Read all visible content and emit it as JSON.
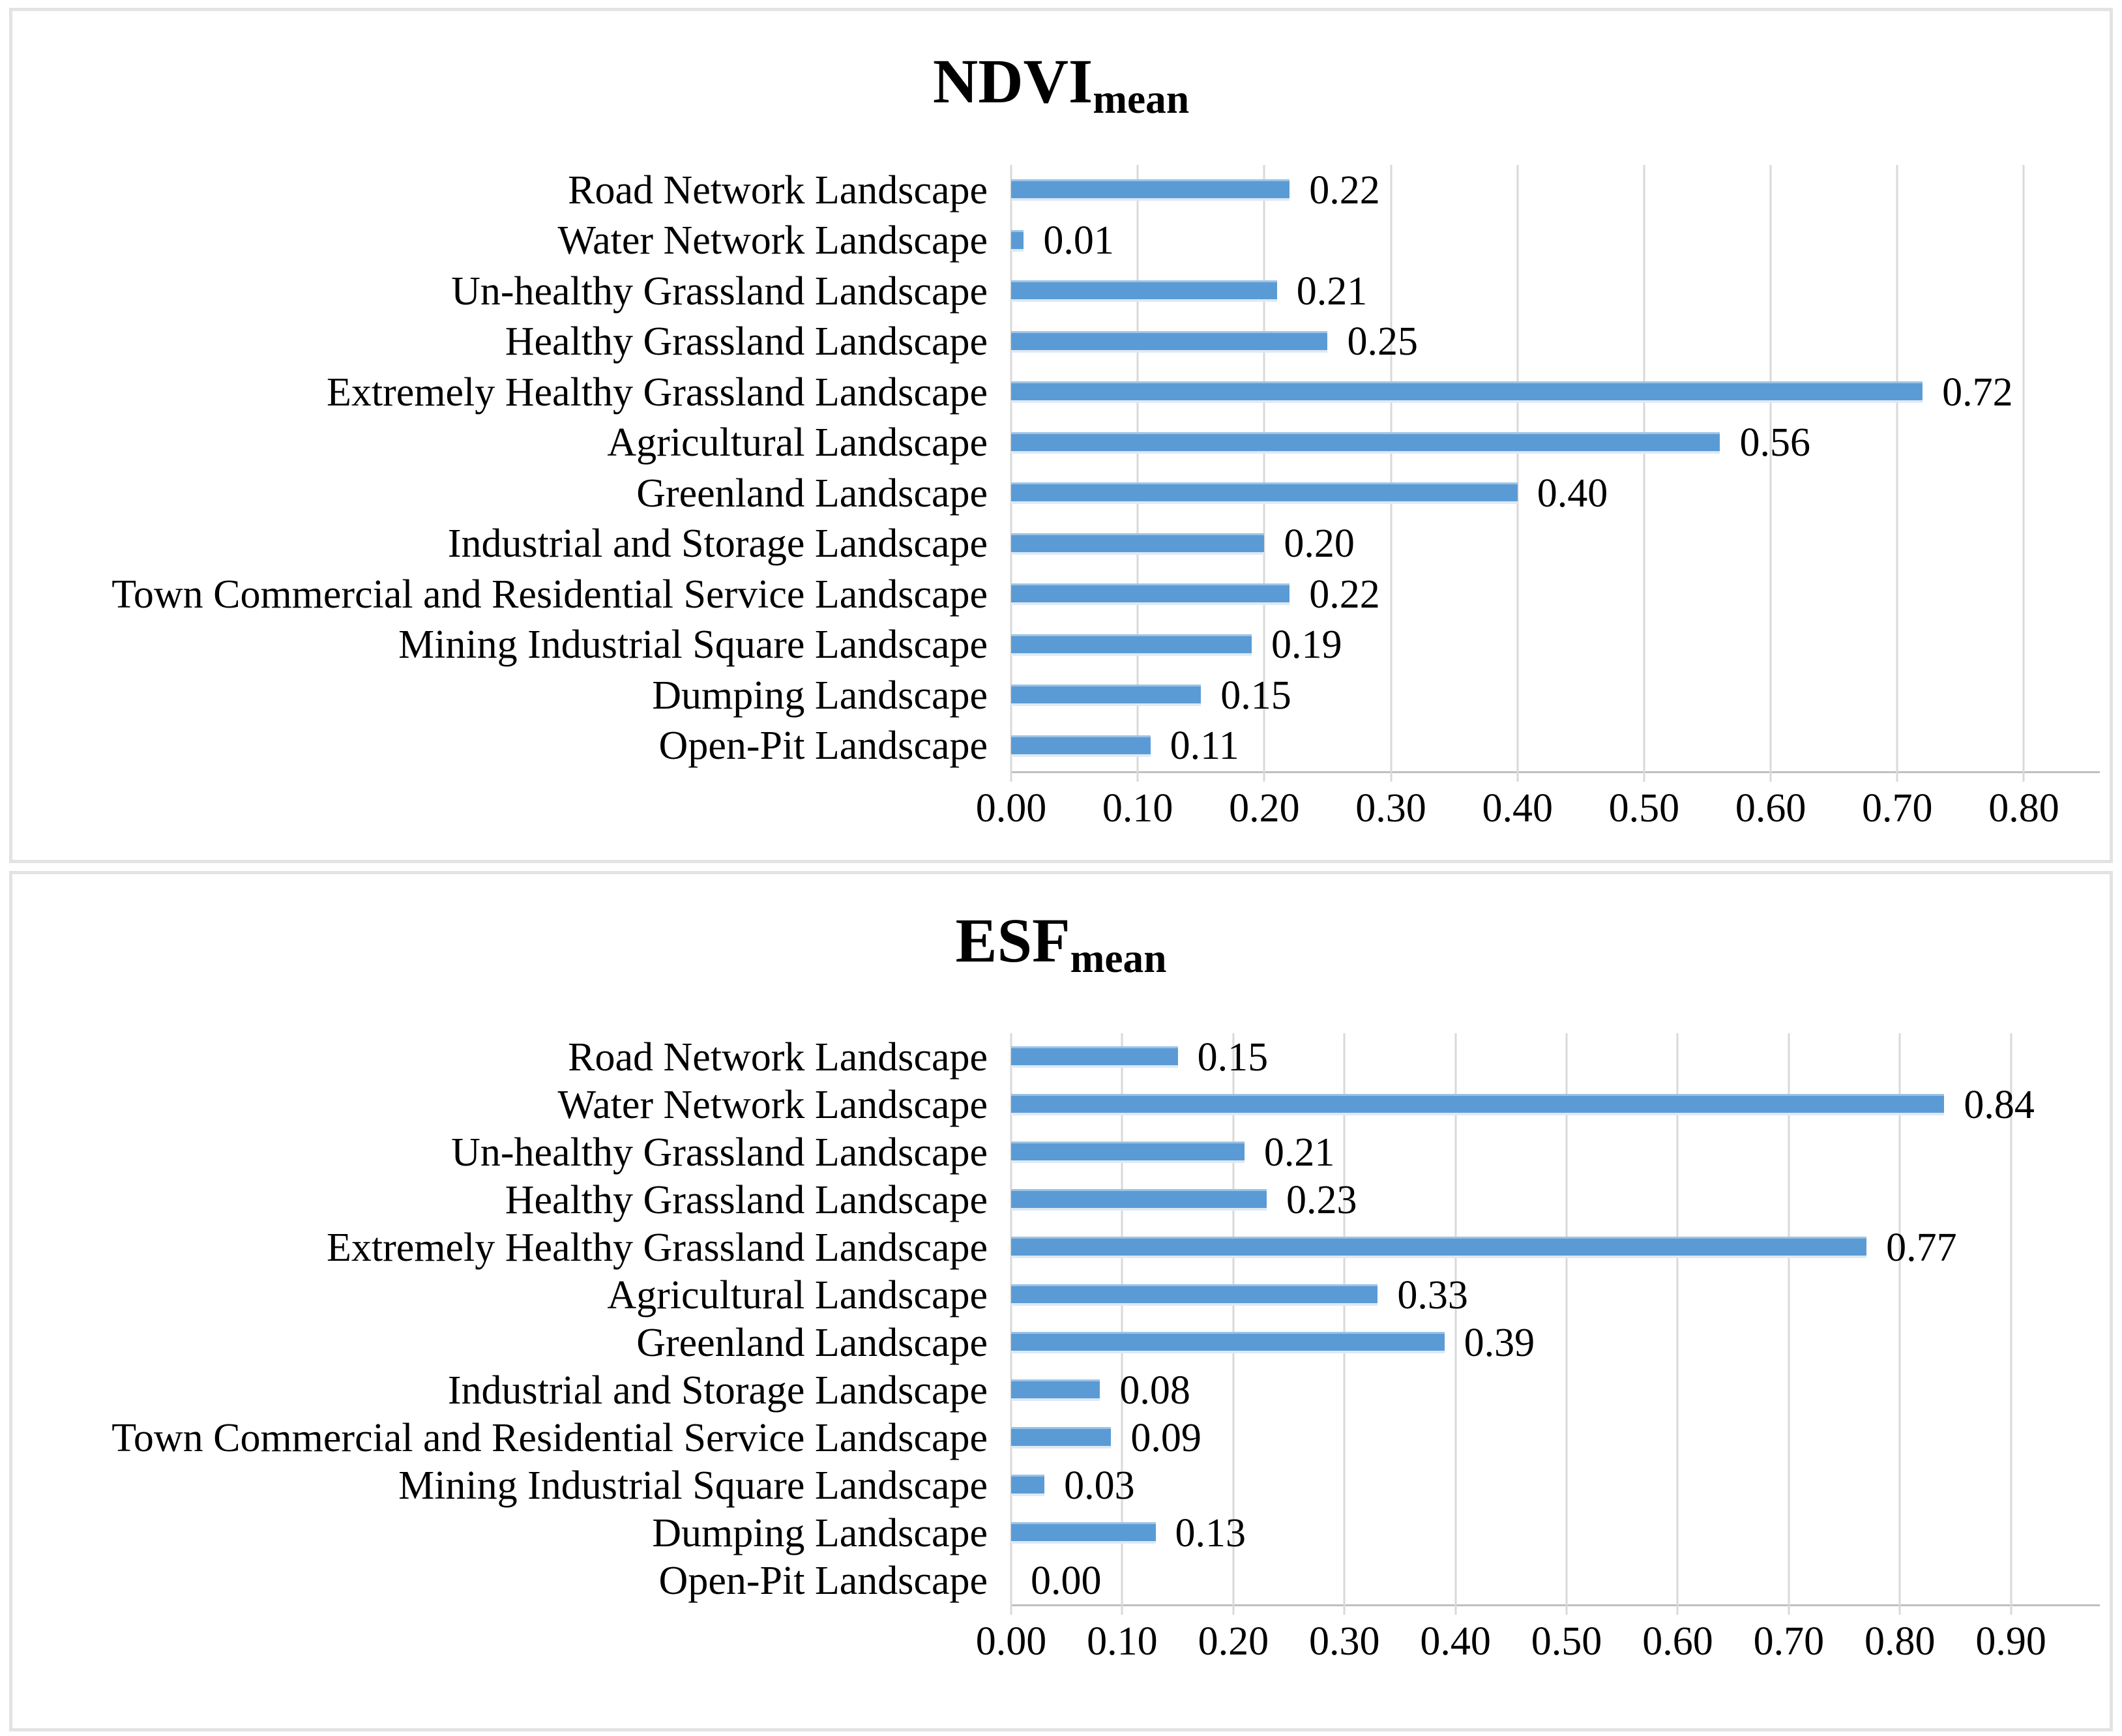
{
  "colors": {
    "bar": "#5B9BD5",
    "bar_top_edge": "#9DC3E6",
    "bar_bottom_edge": "#DEE9F6",
    "gridline": "#D9D9D9",
    "axis_line": "#BFBFBF",
    "panel_border": "#E3E3E3",
    "text": "#000000"
  },
  "chart_data": [
    {
      "type": "bar",
      "orientation": "horizontal",
      "title": "NDVI_mean",
      "title_base": "NDVI",
      "title_sub": "mean",
      "categories": [
        "Road Network Landscape",
        "Water Network Landscape",
        "Un-healthy Grassland Landscape",
        "Healthy Grassland Landscape",
        "Extremely Healthy Grassland Landscape",
        "Agricultural Landscape",
        "Greenland Landscape",
        "Industrial and Storage Landscape",
        "Town Commercial and Residential Service Landscape",
        "Mining Industrial Square Landscape",
        "Dumping Landscape",
        "Open-Pit Landscape"
      ],
      "values": [
        0.22,
        0.01,
        0.21,
        0.25,
        0.72,
        0.56,
        0.4,
        0.2,
        0.22,
        0.19,
        0.15,
        0.11
      ],
      "value_labels": [
        "0.22",
        "0.01",
        "0.21",
        "0.25",
        "0.72",
        "0.56",
        "0.40",
        "0.20",
        "0.22",
        "0.19",
        "0.15",
        "0.11"
      ],
      "xlabel": "",
      "ylabel": "",
      "ticks": [
        "0.00",
        "0.10",
        "0.20",
        "0.30",
        "0.40",
        "0.50",
        "0.60",
        "0.70",
        "0.80"
      ],
      "tick_values": [
        0.0,
        0.1,
        0.2,
        0.3,
        0.4,
        0.5,
        0.6,
        0.7,
        0.8
      ],
      "xlim": [
        0,
        0.86
      ],
      "grid": true,
      "legend": false
    },
    {
      "type": "bar",
      "orientation": "horizontal",
      "title": "ESF_mean",
      "title_base": "ESF",
      "title_sub": "mean",
      "categories": [
        "Road Network Landscape",
        "Water Network Landscape",
        "Un-healthy Grassland Landscape",
        "Healthy Grassland Landscape",
        "Extremely Healthy Grassland Landscape",
        "Agricultural Landscape",
        "Greenland Landscape",
        "Industrial and Storage Landscape",
        "Town Commercial and Residential Service Landscape",
        "Mining Industrial Square Landscape",
        "Dumping Landscape",
        "Open-Pit Landscape"
      ],
      "values": [
        0.15,
        0.84,
        0.21,
        0.23,
        0.77,
        0.33,
        0.39,
        0.08,
        0.09,
        0.03,
        0.13,
        0.0
      ],
      "value_labels": [
        "0.15",
        "0.84",
        "0.21",
        "0.23",
        "0.77",
        "0.33",
        "0.39",
        "0.08",
        "0.09",
        "0.03",
        "0.13",
        "0.00"
      ],
      "xlabel": "",
      "ylabel": "",
      "ticks": [
        "0.00",
        "0.10",
        "0.20",
        "0.30",
        "0.40",
        "0.50",
        "0.60",
        "0.70",
        "0.80",
        "0.90"
      ],
      "tick_values": [
        0.0,
        0.1,
        0.2,
        0.3,
        0.4,
        0.5,
        0.6,
        0.7,
        0.8,
        0.9
      ],
      "xlim": [
        0,
        0.98
      ],
      "grid": true,
      "legend": false
    }
  ]
}
